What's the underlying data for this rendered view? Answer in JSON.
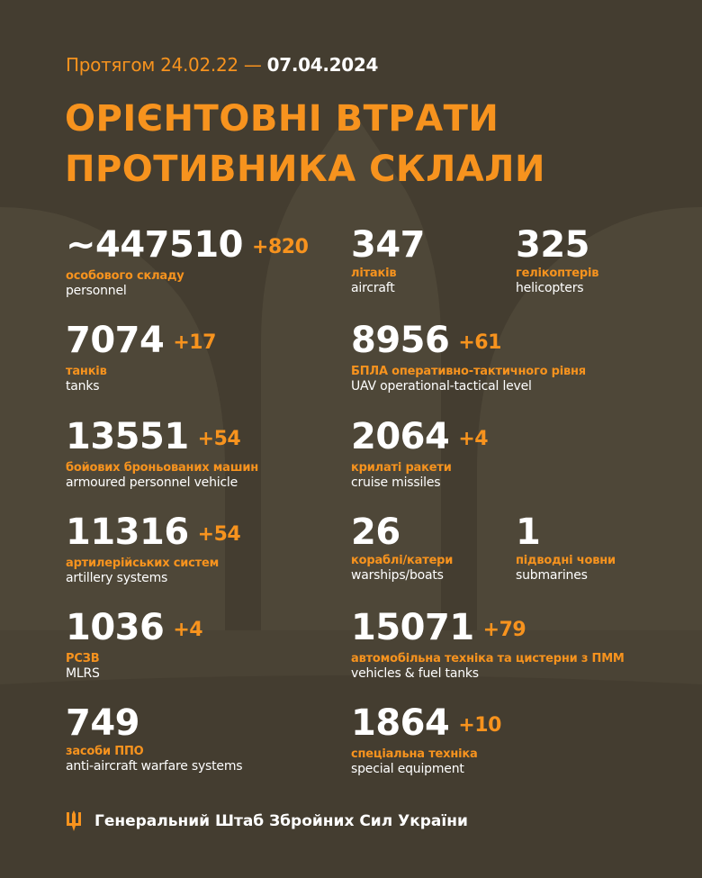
{
  "header": {
    "prefix": "Протягом 24.02.22 —",
    "date": "07.04.2024",
    "title_line1": "ОРІЄНТОВНІ ВТРАТИ",
    "title_line2": "ПРОТИВНИКА СКЛАЛИ"
  },
  "colors": {
    "background": "#443d30",
    "accent": "#f7931e",
    "silhouette": "#4e4738"
  },
  "stats": [
    {
      "value": "~447510",
      "delta": "+820",
      "ua": "особового складу",
      "en": "personnel"
    },
    {
      "value": "347",
      "delta": "",
      "ua": "літаків",
      "en": "aircraft"
    },
    {
      "value": "325",
      "delta": "",
      "ua": "гелікоптерів",
      "en": "helicopters"
    },
    {
      "value": "7074",
      "delta": "+17",
      "ua": "танків",
      "en": "tanks"
    },
    {
      "value": "8956",
      "delta": "+61",
      "ua": "БПЛА оперативно-тактичного рівня",
      "en": "UAV operational-tactical level"
    },
    {
      "value": "13551",
      "delta": "+54",
      "ua": "бойових броньованих машин",
      "en": "armoured personnel vehicle"
    },
    {
      "value": "2064",
      "delta": "+4",
      "ua": "крилаті ракети",
      "en": "cruise missiles"
    },
    {
      "value": "11316",
      "delta": "+54",
      "ua": "артилерійських систем",
      "en": "artillery systems"
    },
    {
      "value": "26",
      "delta": "",
      "ua": "кораблі/катери",
      "en": "warships/boats"
    },
    {
      "value": "1",
      "delta": "",
      "ua": "підводні човни",
      "en": "submarines"
    },
    {
      "value": "1036",
      "delta": "+4",
      "ua": "РСЗВ",
      "en": "MLRS"
    },
    {
      "value": "15071",
      "delta": "+79",
      "ua": "автомобільна техніка та цистерни з ПММ",
      "en": "vehicles & fuel tanks"
    },
    {
      "value": "749",
      "delta": "",
      "ua": "засоби ППО",
      "en": "anti-aircraft warfare systems"
    },
    {
      "value": "1864",
      "delta": "+10",
      "ua": "спеціальна техніка",
      "en": "special equipment"
    }
  ],
  "footer": {
    "text": "Генеральний Штаб Збройних Сил України",
    "icon": "trident-icon"
  }
}
